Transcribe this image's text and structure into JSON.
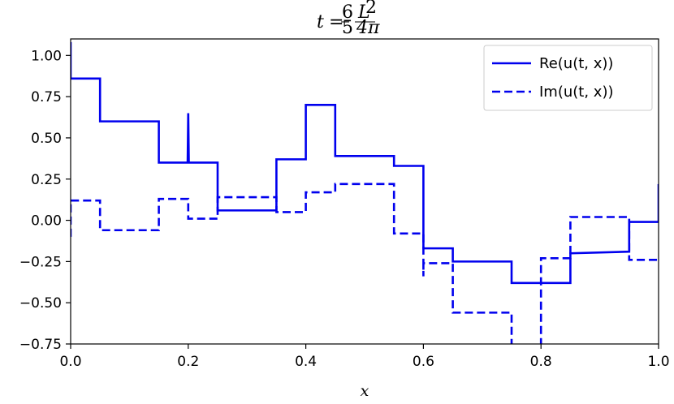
{
  "chart_data": {
    "type": "line",
    "title": {
      "var": "t",
      "eq": "=",
      "num1": "6",
      "den1": "5",
      "num2": "L",
      "num2_exp": "2",
      "den2": "4π"
    },
    "xlabel": "x",
    "ylabel": "",
    "xlim": [
      0.0,
      1.0
    ],
    "ylim": [
      -0.75,
      1.1
    ],
    "xticks": [
      0.0,
      0.2,
      0.4,
      0.6,
      0.8,
      1.0
    ],
    "xtick_labels": [
      "0.0",
      "0.2",
      "0.4",
      "0.6",
      "0.8",
      "1.0"
    ],
    "yticks": [
      1.0,
      0.75,
      0.5,
      0.25,
      0.0,
      -0.25,
      -0.5,
      -0.75
    ],
    "ytick_labels": [
      "1.00",
      "0.75",
      "0.50",
      "0.25",
      "0.00",
      "−0.25",
      "−0.50",
      "−0.75"
    ],
    "grid": false,
    "legend_position": "top-right",
    "series": [
      {
        "name": "Re(u(t, x))",
        "style": "solid",
        "color": "#0000ee",
        "x": [
          0.0,
          0.0,
          0.05,
          0.05,
          0.15,
          0.15,
          0.199,
          0.2,
          0.201,
          0.25,
          0.25,
          0.35,
          0.35,
          0.4,
          0.4,
          0.45,
          0.45,
          0.55,
          0.55,
          0.6,
          0.6,
          0.65,
          0.65,
          0.75,
          0.75,
          0.8,
          0.8,
          0.85,
          0.85,
          0.95,
          0.95,
          1.0,
          1.0
        ],
        "y": [
          1.08,
          0.86,
          0.86,
          0.6,
          0.6,
          0.35,
          0.35,
          0.65,
          0.35,
          0.35,
          0.06,
          0.06,
          0.37,
          0.37,
          0.7,
          0.7,
          0.39,
          0.39,
          0.33,
          0.33,
          -0.17,
          -0.17,
          -0.25,
          -0.25,
          -0.38,
          -0.38,
          -0.38,
          -0.38,
          -0.2,
          -0.19,
          -0.01,
          -0.01,
          0.22
        ]
      },
      {
        "name": "Im(u(t, x))",
        "style": "dashed",
        "color": "#0000ee",
        "x": [
          0.0,
          0.0,
          0.05,
          0.05,
          0.15,
          0.15,
          0.2,
          0.2,
          0.25,
          0.25,
          0.35,
          0.35,
          0.4,
          0.4,
          0.45,
          0.45,
          0.55,
          0.55,
          0.6,
          0.6,
          0.6,
          0.65,
          0.65,
          0.75,
          0.75,
          0.8,
          0.8,
          0.85,
          0.85,
          0.95,
          0.95,
          1.0,
          1.0
        ],
        "y": [
          -0.1,
          0.12,
          0.12,
          -0.06,
          -0.06,
          0.13,
          0.13,
          0.01,
          0.01,
          0.14,
          0.14,
          0.05,
          0.05,
          0.17,
          0.17,
          0.22,
          0.22,
          -0.08,
          -0.08,
          -0.34,
          -0.26,
          -0.26,
          -0.56,
          -0.56,
          -0.8,
          -0.8,
          -0.23,
          -0.23,
          0.02,
          0.02,
          -0.24,
          -0.24,
          -0.24
        ]
      }
    ]
  }
}
